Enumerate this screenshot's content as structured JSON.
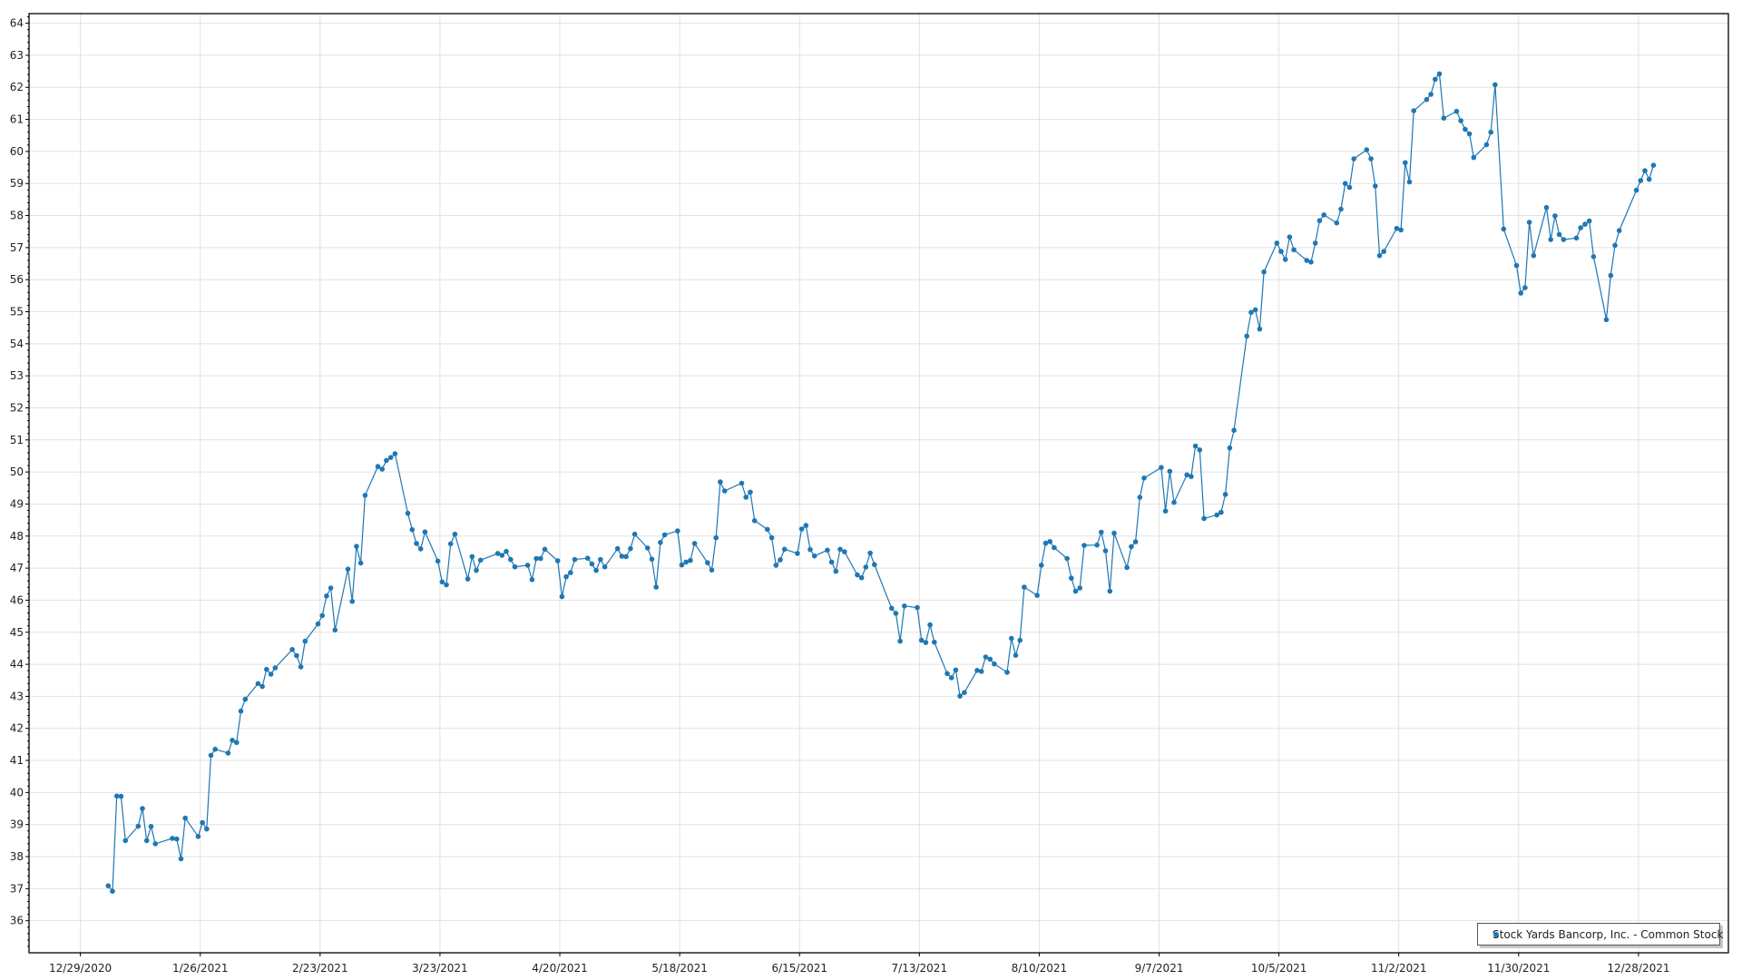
{
  "chart_data": {
    "type": "line",
    "title": "",
    "xlabel": "",
    "ylabel": "",
    "xlim": [
      "2020-12-17",
      "2022-01-18"
    ],
    "ylim": [
      35,
      64.3
    ],
    "grid": true,
    "legend_position": "bottom-right",
    "x_ticks": [
      "12/29/2020",
      "1/26/2021",
      "2/23/2021",
      "3/23/2021",
      "4/20/2021",
      "5/18/2021",
      "6/15/2021",
      "7/13/2021",
      "8/10/2021",
      "9/7/2021",
      "10/5/2021",
      "11/2/2021",
      "11/30/2021",
      "12/28/2021"
    ],
    "y_ticks": [
      36,
      37,
      38,
      39,
      40,
      41,
      42,
      43,
      44,
      45,
      46,
      47,
      48,
      49,
      50,
      51,
      52,
      53,
      54,
      55,
      56,
      57,
      58,
      59,
      60,
      61,
      62,
      63,
      64
    ],
    "series": [
      {
        "name": "Stock Yards Bancorp, Inc. - Common Stock",
        "color": "#1f77b4",
        "marker": "circle",
        "points": [
          [
            "2021-01-04",
            37.09
          ],
          [
            "2021-01-05",
            36.92
          ],
          [
            "2021-01-06",
            39.89
          ],
          [
            "2021-01-07",
            39.88
          ],
          [
            "2021-01-08",
            38.5
          ],
          [
            "2021-01-11",
            38.95
          ],
          [
            "2021-01-12",
            39.5
          ],
          [
            "2021-01-13",
            38.5
          ],
          [
            "2021-01-14",
            38.94
          ],
          [
            "2021-01-15",
            38.4
          ],
          [
            "2021-01-19",
            38.57
          ],
          [
            "2021-01-20",
            38.55
          ],
          [
            "2021-01-21",
            37.93
          ],
          [
            "2021-01-22",
            39.2
          ],
          [
            "2021-01-25",
            38.63
          ],
          [
            "2021-01-26",
            39.06
          ],
          [
            "2021-01-27",
            38.86
          ],
          [
            "2021-01-28",
            41.16
          ],
          [
            "2021-01-29",
            41.35
          ],
          [
            "2021-02-01",
            41.23
          ],
          [
            "2021-02-02",
            41.63
          ],
          [
            "2021-02-03",
            41.56
          ],
          [
            "2021-02-04",
            42.54
          ],
          [
            "2021-02-05",
            42.91
          ],
          [
            "2021-02-08",
            43.4
          ],
          [
            "2021-02-09",
            43.31
          ],
          [
            "2021-02-10",
            43.84
          ],
          [
            "2021-02-11",
            43.69
          ],
          [
            "2021-02-12",
            43.89
          ],
          [
            "2021-02-16",
            44.46
          ],
          [
            "2021-02-17",
            44.27
          ],
          [
            "2021-02-18",
            43.92
          ],
          [
            "2021-02-19",
            44.72
          ],
          [
            "2021-02-22",
            45.26
          ],
          [
            "2021-02-23",
            45.52
          ],
          [
            "2021-02-24",
            46.13
          ],
          [
            "2021-02-25",
            46.38
          ],
          [
            "2021-02-26",
            45.07
          ],
          [
            "2021-03-01",
            46.97
          ],
          [
            "2021-03-02",
            45.96
          ],
          [
            "2021-03-03",
            47.68
          ],
          [
            "2021-03-04",
            47.16
          ],
          [
            "2021-03-05",
            49.27
          ],
          [
            "2021-03-08",
            50.17
          ],
          [
            "2021-03-09",
            50.09
          ],
          [
            "2021-03-10",
            50.36
          ],
          [
            "2021-03-11",
            50.45
          ],
          [
            "2021-03-12",
            50.57
          ],
          [
            "2021-03-15",
            48.71
          ],
          [
            "2021-03-16",
            48.2
          ],
          [
            "2021-03-17",
            47.77
          ],
          [
            "2021-03-18",
            47.6
          ],
          [
            "2021-03-19",
            48.13
          ],
          [
            "2021-03-22",
            47.22
          ],
          [
            "2021-03-23",
            46.57
          ],
          [
            "2021-03-24",
            46.48
          ],
          [
            "2021-03-25",
            47.76
          ],
          [
            "2021-03-26",
            48.06
          ],
          [
            "2021-03-29",
            46.66
          ],
          [
            "2021-03-30",
            47.36
          ],
          [
            "2021-03-31",
            46.93
          ],
          [
            "2021-04-01",
            47.25
          ],
          [
            "2021-04-05",
            47.46
          ],
          [
            "2021-04-06",
            47.4
          ],
          [
            "2021-04-07",
            47.52
          ],
          [
            "2021-04-08",
            47.27
          ],
          [
            "2021-04-09",
            47.04
          ],
          [
            "2021-04-12",
            47.09
          ],
          [
            "2021-04-13",
            46.64
          ],
          [
            "2021-04-14",
            47.3
          ],
          [
            "2021-04-15",
            47.3
          ],
          [
            "2021-04-16",
            47.59
          ],
          [
            "2021-04-19",
            47.23
          ],
          [
            "2021-04-20",
            46.11
          ],
          [
            "2021-04-21",
            46.73
          ],
          [
            "2021-04-22",
            46.86
          ],
          [
            "2021-04-23",
            47.27
          ],
          [
            "2021-04-26",
            47.31
          ],
          [
            "2021-04-27",
            47.13
          ],
          [
            "2021-04-28",
            46.93
          ],
          [
            "2021-04-29",
            47.27
          ],
          [
            "2021-04-30",
            47.04
          ],
          [
            "2021-05-03",
            47.61
          ],
          [
            "2021-05-04",
            47.37
          ],
          [
            "2021-05-05",
            47.36
          ],
          [
            "2021-05-06",
            47.61
          ],
          [
            "2021-05-07",
            48.06
          ],
          [
            "2021-05-10",
            47.63
          ],
          [
            "2021-05-11",
            47.28
          ],
          [
            "2021-05-12",
            46.41
          ],
          [
            "2021-05-13",
            47.8
          ],
          [
            "2021-05-14",
            48.04
          ],
          [
            "2021-05-17",
            48.16
          ],
          [
            "2021-05-18",
            47.1
          ],
          [
            "2021-05-19",
            47.19
          ],
          [
            "2021-05-20",
            47.24
          ],
          [
            "2021-05-21",
            47.77
          ],
          [
            "2021-05-24",
            47.17
          ],
          [
            "2021-05-25",
            46.94
          ],
          [
            "2021-05-26",
            47.95
          ],
          [
            "2021-05-27",
            49.69
          ],
          [
            "2021-05-28",
            49.41
          ],
          [
            "2021-06-01",
            49.65
          ],
          [
            "2021-06-02",
            49.21
          ],
          [
            "2021-06-03",
            49.37
          ],
          [
            "2021-06-04",
            48.48
          ],
          [
            "2021-06-07",
            48.21
          ],
          [
            "2021-06-08",
            47.95
          ],
          [
            "2021-06-09",
            47.09
          ],
          [
            "2021-06-10",
            47.26
          ],
          [
            "2021-06-11",
            47.59
          ],
          [
            "2021-06-14",
            47.46
          ],
          [
            "2021-06-15",
            48.22
          ],
          [
            "2021-06-16",
            48.33
          ],
          [
            "2021-06-17",
            47.58
          ],
          [
            "2021-06-18",
            47.38
          ],
          [
            "2021-06-21",
            47.56
          ],
          [
            "2021-06-22",
            47.19
          ],
          [
            "2021-06-23",
            46.9
          ],
          [
            "2021-06-24",
            47.59
          ],
          [
            "2021-06-25",
            47.51
          ],
          [
            "2021-06-28",
            46.79
          ],
          [
            "2021-06-29",
            46.7
          ],
          [
            "2021-06-30",
            47.03
          ],
          [
            "2021-07-01",
            47.47
          ],
          [
            "2021-07-02",
            47.11
          ],
          [
            "2021-07-06",
            45.75
          ],
          [
            "2021-07-07",
            45.59
          ],
          [
            "2021-07-08",
            44.72
          ],
          [
            "2021-07-09",
            45.82
          ],
          [
            "2021-07-12",
            45.77
          ],
          [
            "2021-07-13",
            44.75
          ],
          [
            "2021-07-14",
            44.68
          ],
          [
            "2021-07-15",
            45.23
          ],
          [
            "2021-07-16",
            44.69
          ],
          [
            "2021-07-19",
            43.71
          ],
          [
            "2021-07-20",
            43.58
          ],
          [
            "2021-07-21",
            43.82
          ],
          [
            "2021-07-22",
            43.01
          ],
          [
            "2021-07-23",
            43.12
          ],
          [
            "2021-07-26",
            43.81
          ],
          [
            "2021-07-27",
            43.78
          ],
          [
            "2021-07-28",
            44.23
          ],
          [
            "2021-07-29",
            44.16
          ],
          [
            "2021-07-30",
            44.01
          ],
          [
            "2021-08-02",
            43.75
          ],
          [
            "2021-08-03",
            44.81
          ],
          [
            "2021-08-04",
            44.28
          ],
          [
            "2021-08-05",
            44.75
          ],
          [
            "2021-08-06",
            46.41
          ],
          [
            "2021-08-09",
            46.15
          ],
          [
            "2021-08-10",
            47.09
          ],
          [
            "2021-08-11",
            47.78
          ],
          [
            "2021-08-12",
            47.83
          ],
          [
            "2021-08-13",
            47.64
          ],
          [
            "2021-08-16",
            47.3
          ],
          [
            "2021-08-17",
            46.69
          ],
          [
            "2021-08-18",
            46.28
          ],
          [
            "2021-08-19",
            46.38
          ],
          [
            "2021-08-20",
            47.71
          ],
          [
            "2021-08-23",
            47.72
          ],
          [
            "2021-08-24",
            48.12
          ],
          [
            "2021-08-25",
            47.54
          ],
          [
            "2021-08-26",
            46.28
          ],
          [
            "2021-08-27",
            48.09
          ],
          [
            "2021-08-30",
            47.02
          ],
          [
            "2021-08-31",
            47.67
          ],
          [
            "2021-09-01",
            47.82
          ],
          [
            "2021-09-02",
            49.21
          ],
          [
            "2021-09-03",
            49.81
          ],
          [
            "2021-09-07",
            50.14
          ],
          [
            "2021-09-08",
            48.78
          ],
          [
            "2021-09-09",
            50.02
          ],
          [
            "2021-09-10",
            49.05
          ],
          [
            "2021-09-13",
            49.91
          ],
          [
            "2021-09-14",
            49.86
          ],
          [
            "2021-09-15",
            50.81
          ],
          [
            "2021-09-16",
            50.69
          ],
          [
            "2021-09-17",
            48.55
          ],
          [
            "2021-09-20",
            48.66
          ],
          [
            "2021-09-21",
            48.74
          ],
          [
            "2021-09-22",
            49.3
          ],
          [
            "2021-09-23",
            50.75
          ],
          [
            "2021-09-24",
            51.3
          ],
          [
            "2021-09-27",
            54.24
          ],
          [
            "2021-09-28",
            54.98
          ],
          [
            "2021-09-29",
            55.06
          ],
          [
            "2021-09-30",
            54.46
          ],
          [
            "2021-10-01",
            56.24
          ],
          [
            "2021-10-04",
            57.14
          ],
          [
            "2021-10-05",
            56.88
          ],
          [
            "2021-10-06",
            56.63
          ],
          [
            "2021-10-07",
            57.33
          ],
          [
            "2021-10-08",
            56.93
          ],
          [
            "2021-10-11",
            56.6
          ],
          [
            "2021-10-12",
            56.55
          ],
          [
            "2021-10-13",
            57.14
          ],
          [
            "2021-10-14",
            57.84
          ],
          [
            "2021-10-15",
            58.02
          ],
          [
            "2021-10-18",
            57.77
          ],
          [
            "2021-10-19",
            58.2
          ],
          [
            "2021-10-20",
            59.0
          ],
          [
            "2021-10-21",
            58.88
          ],
          [
            "2021-10-22",
            59.77
          ],
          [
            "2021-10-25",
            60.05
          ],
          [
            "2021-10-26",
            59.77
          ],
          [
            "2021-10-27",
            58.92
          ],
          [
            "2021-10-28",
            56.75
          ],
          [
            "2021-10-29",
            56.88
          ],
          [
            "2021-11-01",
            57.6
          ],
          [
            "2021-11-02",
            57.55
          ],
          [
            "2021-11-03",
            59.65
          ],
          [
            "2021-11-04",
            59.05
          ],
          [
            "2021-11-05",
            61.27
          ],
          [
            "2021-11-08",
            61.62
          ],
          [
            "2021-11-09",
            61.78
          ],
          [
            "2021-11-10",
            62.25
          ],
          [
            "2021-11-11",
            62.42
          ],
          [
            "2021-11-12",
            61.04
          ],
          [
            "2021-11-15",
            61.25
          ],
          [
            "2021-11-16",
            60.96
          ],
          [
            "2021-11-17",
            60.69
          ],
          [
            "2021-11-18",
            60.55
          ],
          [
            "2021-11-19",
            59.81
          ],
          [
            "2021-11-22",
            60.21
          ],
          [
            "2021-11-23",
            60.6
          ],
          [
            "2021-11-24",
            62.08
          ],
          [
            "2021-11-26",
            57.58
          ],
          [
            "2021-11-29",
            56.44
          ],
          [
            "2021-11-30",
            55.58
          ],
          [
            "2021-12-01",
            55.75
          ],
          [
            "2021-12-02",
            57.79
          ],
          [
            "2021-12-03",
            56.75
          ],
          [
            "2021-12-06",
            58.25
          ],
          [
            "2021-12-07",
            57.25
          ],
          [
            "2021-12-08",
            57.99
          ],
          [
            "2021-12-09",
            57.41
          ],
          [
            "2021-12-10",
            57.25
          ],
          [
            "2021-12-13",
            57.3
          ],
          [
            "2021-12-14",
            57.62
          ],
          [
            "2021-12-15",
            57.73
          ],
          [
            "2021-12-16",
            57.83
          ],
          [
            "2021-12-17",
            56.72
          ],
          [
            "2021-12-20",
            54.75
          ],
          [
            "2021-12-21",
            56.13
          ],
          [
            "2021-12-22",
            57.07
          ],
          [
            "2021-12-23",
            57.53
          ],
          [
            "2021-12-27",
            58.79
          ],
          [
            "2021-12-28",
            59.09
          ],
          [
            "2021-12-29",
            59.4
          ],
          [
            "2021-12-30",
            59.13
          ],
          [
            "2021-12-31",
            59.57
          ]
        ]
      }
    ]
  }
}
